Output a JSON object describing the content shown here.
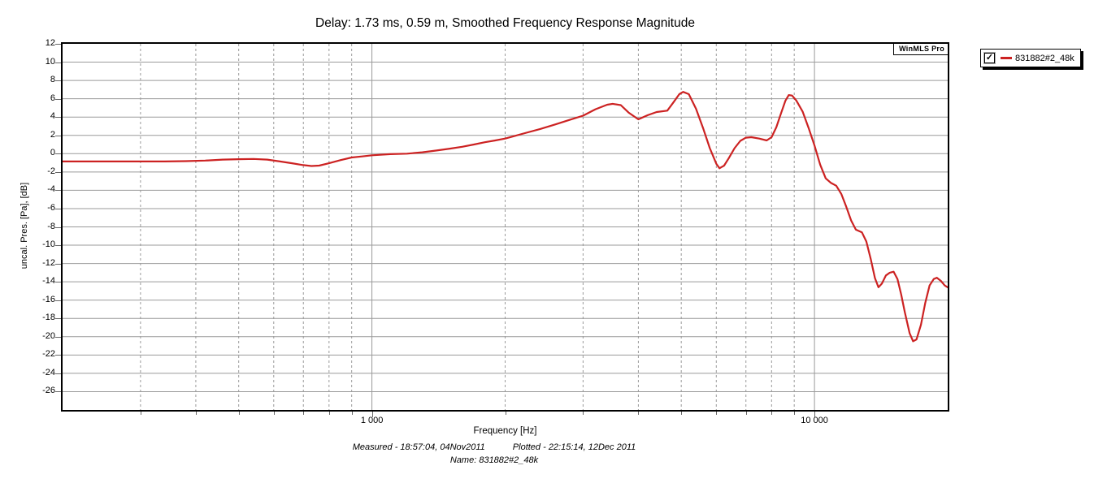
{
  "title": "Delay: 1.73 ms, 0.59 m, Smoothed Frequency Response Magnitude",
  "watermark": "WinMLS Pro",
  "legend": {
    "checked": true,
    "checkmark": "✓",
    "label": "831882#2_48k",
    "line_color": "#cc2222"
  },
  "axes": {
    "y_title": "uncal. Pres. [Pa], [dB]",
    "x_title": "Frequency [Hz]"
  },
  "footer": {
    "measured": "Measured - 18:57:04, 04Nov2011",
    "plotted": "Plotted - 22:15:14, 12Dec 2011",
    "name": "Name: 831882#2_48k"
  },
  "colors": {
    "curve": "#cc2222",
    "grid": "#9a9a9a",
    "frame": "#000000",
    "background": "#ffffff"
  },
  "chart_data": {
    "type": "line",
    "title": "Delay: 1.73 ms, 0.59 m, Smoothed Frequency Response Magnitude",
    "xlabel": "Frequency [Hz]",
    "ylabel": "uncal. Pres. [Pa], [dB]",
    "x_scale": "log",
    "xlim": [
      200,
      20000
    ],
    "ylim": [
      -28,
      12
    ],
    "grid": true,
    "legend_position": "outside-top-right",
    "y_ticks": [
      12,
      10,
      8,
      6,
      4,
      2,
      0,
      -2,
      -4,
      -6,
      -8,
      -10,
      -12,
      -14,
      -16,
      -18,
      -20,
      -22,
      -24,
      -26
    ],
    "x_ticks_major": [
      {
        "value": 1000,
        "label": "1 000"
      },
      {
        "value": 10000,
        "label": "10 000"
      }
    ],
    "x_gridlines_minor": [
      300,
      400,
      500,
      600,
      700,
      800,
      900,
      2000,
      3000,
      4000,
      5000,
      6000,
      7000,
      8000,
      9000
    ],
    "x_gridlines_major": [
      1000,
      10000
    ],
    "series": [
      {
        "name": "831882#2_48k",
        "color": "#cc2222",
        "points": [
          [
            200,
            -0.85
          ],
          [
            230,
            -0.85
          ],
          [
            260,
            -0.85
          ],
          [
            300,
            -0.85
          ],
          [
            340,
            -0.85
          ],
          [
            380,
            -0.82
          ],
          [
            420,
            -0.75
          ],
          [
            460,
            -0.65
          ],
          [
            500,
            -0.6
          ],
          [
            540,
            -0.58
          ],
          [
            580,
            -0.65
          ],
          [
            620,
            -0.85
          ],
          [
            660,
            -1.05
          ],
          [
            700,
            -1.25
          ],
          [
            730,
            -1.35
          ],
          [
            760,
            -1.3
          ],
          [
            800,
            -1.05
          ],
          [
            850,
            -0.7
          ],
          [
            900,
            -0.42
          ],
          [
            950,
            -0.3
          ],
          [
            1000,
            -0.18
          ],
          [
            1100,
            -0.05
          ],
          [
            1200,
            0.0
          ],
          [
            1300,
            0.15
          ],
          [
            1400,
            0.35
          ],
          [
            1500,
            0.55
          ],
          [
            1600,
            0.75
          ],
          [
            1700,
            1.0
          ],
          [
            1800,
            1.25
          ],
          [
            1900,
            1.45
          ],
          [
            2000,
            1.65
          ],
          [
            2200,
            2.2
          ],
          [
            2400,
            2.7
          ],
          [
            2600,
            3.2
          ],
          [
            2800,
            3.7
          ],
          [
            3000,
            4.15
          ],
          [
            3200,
            4.85
          ],
          [
            3400,
            5.35
          ],
          [
            3500,
            5.45
          ],
          [
            3650,
            5.3
          ],
          [
            3800,
            4.5
          ],
          [
            4000,
            3.75
          ],
          [
            4200,
            4.2
          ],
          [
            4400,
            4.55
          ],
          [
            4650,
            4.7
          ],
          [
            4800,
            5.6
          ],
          [
            4950,
            6.5
          ],
          [
            5050,
            6.75
          ],
          [
            5200,
            6.5
          ],
          [
            5400,
            4.9
          ],
          [
            5600,
            2.8
          ],
          [
            5800,
            0.6
          ],
          [
            6000,
            -1.1
          ],
          [
            6100,
            -1.6
          ],
          [
            6250,
            -1.3
          ],
          [
            6400,
            -0.5
          ],
          [
            6600,
            0.6
          ],
          [
            6800,
            1.4
          ],
          [
            7000,
            1.75
          ],
          [
            7200,
            1.8
          ],
          [
            7500,
            1.65
          ],
          [
            7800,
            1.45
          ],
          [
            8000,
            1.8
          ],
          [
            8200,
            2.9
          ],
          [
            8400,
            4.4
          ],
          [
            8600,
            5.8
          ],
          [
            8750,
            6.4
          ],
          [
            8900,
            6.35
          ],
          [
            9100,
            5.8
          ],
          [
            9400,
            4.6
          ],
          [
            9700,
            2.8
          ],
          [
            10000,
            0.9
          ],
          [
            10300,
            -1.2
          ],
          [
            10600,
            -2.7
          ],
          [
            10900,
            -3.2
          ],
          [
            11200,
            -3.5
          ],
          [
            11500,
            -4.4
          ],
          [
            11800,
            -5.8
          ],
          [
            12100,
            -7.3
          ],
          [
            12400,
            -8.3
          ],
          [
            12800,
            -8.6
          ],
          [
            13100,
            -9.6
          ],
          [
            13400,
            -11.5
          ],
          [
            13700,
            -13.6
          ],
          [
            13950,
            -14.6
          ],
          [
            14200,
            -14.2
          ],
          [
            14500,
            -13.3
          ],
          [
            14800,
            -13.0
          ],
          [
            15100,
            -12.9
          ],
          [
            15400,
            -13.7
          ],
          [
            15700,
            -15.4
          ],
          [
            16000,
            -17.3
          ],
          [
            16400,
            -19.6
          ],
          [
            16700,
            -20.5
          ],
          [
            17000,
            -20.3
          ],
          [
            17400,
            -18.7
          ],
          [
            17800,
            -16.3
          ],
          [
            18200,
            -14.4
          ],
          [
            18600,
            -13.7
          ],
          [
            18900,
            -13.55
          ],
          [
            19300,
            -13.9
          ],
          [
            19700,
            -14.4
          ],
          [
            20000,
            -14.6
          ]
        ]
      }
    ]
  }
}
